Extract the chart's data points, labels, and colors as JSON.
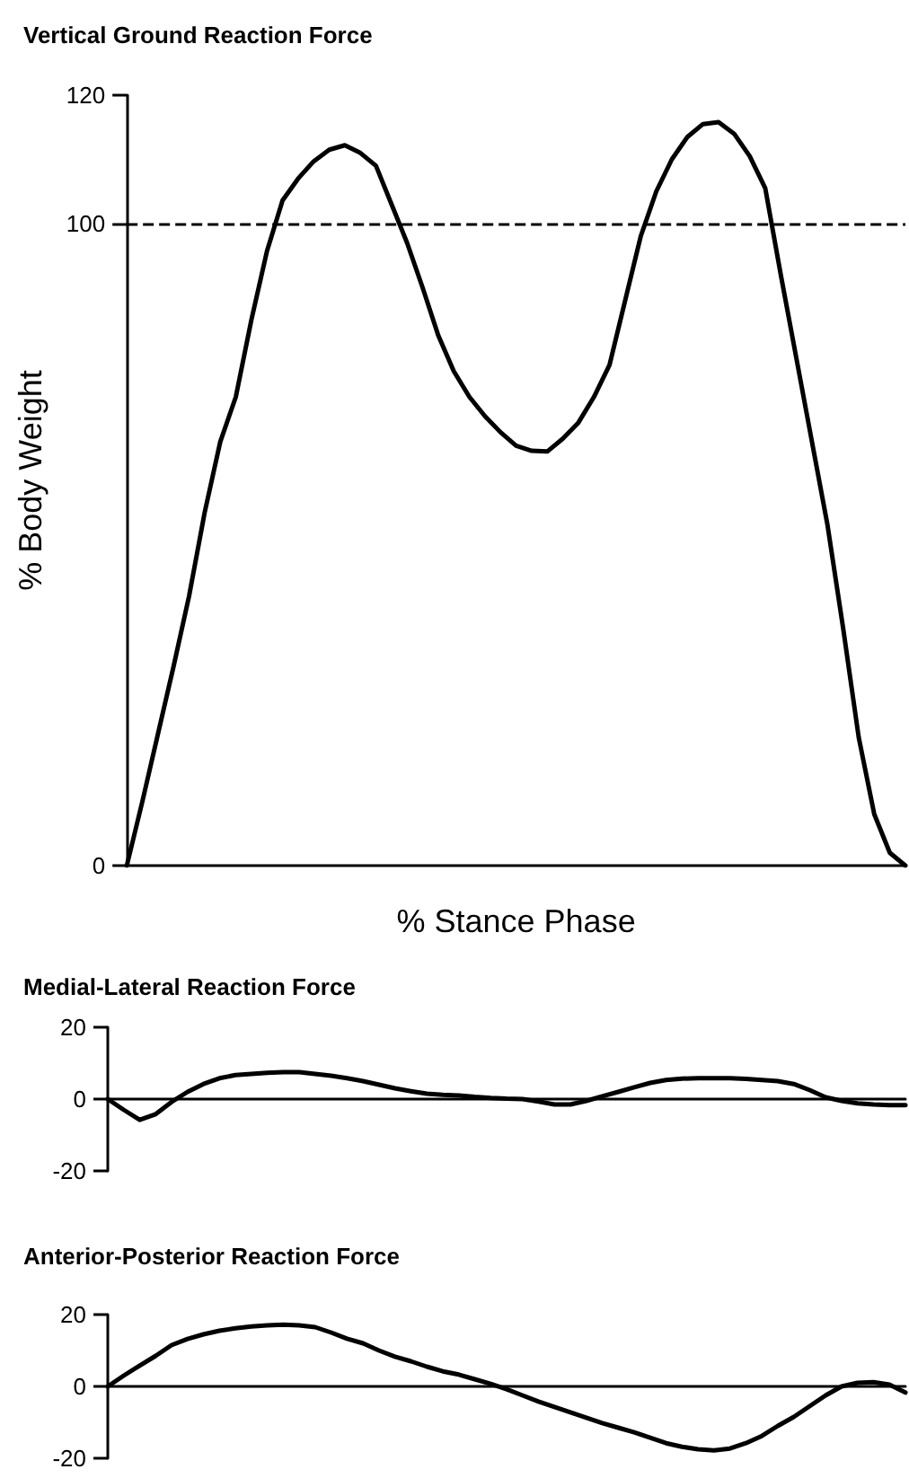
{
  "chart_data": [
    {
      "type": "line",
      "title": "Vertical Ground Reaction Force",
      "xlabel": "% Stance Phase",
      "ylabel": "% Body Weight",
      "categories": [
        null,
        null,
        null,
        null,
        null,
        null,
        null,
        null,
        null,
        null,
        null,
        null,
        null,
        null,
        null,
        null,
        null,
        null,
        null,
        null,
        null,
        null,
        null,
        null,
        null,
        null,
        null,
        null,
        null,
        null,
        null,
        null,
        null,
        null,
        null,
        null,
        null,
        null,
        null,
        null,
        null,
        null,
        null,
        null,
        null,
        null,
        null,
        null,
        null,
        null,
        null
      ],
      "series": [
        {
          "color": "#000000",
          "values": [
            0,
            10,
            20.5,
            31,
            42,
            55,
            66,
            73,
            85,
            95.7,
            103.6,
            107,
            109.7,
            111.5,
            112.2,
            111,
            109,
            103,
            97,
            90,
            82.6,
            77,
            73,
            70,
            67.5,
            65.4,
            64.6,
            64.5,
            66.5,
            69,
            73,
            78,
            88,
            98,
            105,
            110,
            113.5,
            115.5,
            115.8,
            114,
            110.5,
            105.5,
            92,
            79,
            66,
            53,
            37,
            20,
            8,
            2,
            0
          ]
        }
      ],
      "ylim": [
        0,
        120
      ],
      "yticks": [
        0,
        100,
        120
      ],
      "tick_labels": "y",
      "line_style": "solid",
      "ref_lines": [
        {
          "axis": "y",
          "value": 100,
          "color": "#000000",
          "line_style": "dashed"
        }
      ]
    },
    {
      "type": "line",
      "title": "Medial-Lateral Reaction Force",
      "categories": [
        null,
        null,
        null,
        null,
        null,
        null,
        null,
        null,
        null,
        null,
        null,
        null,
        null,
        null,
        null,
        null,
        null,
        null,
        null,
        null,
        null,
        null,
        null,
        null,
        null,
        null,
        null,
        null,
        null,
        null,
        null,
        null,
        null,
        null,
        null,
        null,
        null,
        null,
        null,
        null,
        null,
        null,
        null,
        null,
        null,
        null,
        null,
        null,
        null,
        null,
        null
      ],
      "series": [
        {
          "color": "#000000",
          "values": [
            0,
            -3,
            -5.8,
            -4.2,
            -0.8,
            2,
            4.2,
            5.8,
            6.7,
            7,
            7.3,
            7.5,
            7.5,
            7,
            6.5,
            5.8,
            5,
            4,
            3,
            2.2,
            1.5,
            1.2,
            1,
            0.6,
            0.3,
            0.1,
            0,
            -0.7,
            -1.5,
            -1.5,
            -0.5,
            0.8,
            2,
            3.3,
            4.5,
            5.3,
            5.7,
            5.8,
            5.8,
            5.8,
            5.6,
            5.3,
            5,
            4.2,
            2.5,
            0.5,
            -0.5,
            -1.2,
            -1.5,
            -1.7,
            -1.7
          ]
        }
      ],
      "ylim": [
        -20,
        20
      ],
      "yticks": [
        -20,
        0,
        20
      ],
      "tick_labels": "y",
      "line_style": "solid"
    },
    {
      "type": "line",
      "title": "Anterior-Posterior Reaction Force",
      "categories": [
        null,
        null,
        null,
        null,
        null,
        null,
        null,
        null,
        null,
        null,
        null,
        null,
        null,
        null,
        null,
        null,
        null,
        null,
        null,
        null,
        null,
        null,
        null,
        null,
        null,
        null,
        null,
        null,
        null,
        null,
        null,
        null,
        null,
        null,
        null,
        null,
        null,
        null,
        null,
        null,
        null,
        null,
        null,
        null,
        null,
        null,
        null,
        null,
        null,
        null,
        null
      ],
      "series": [
        {
          "color": "#000000",
          "values": [
            0,
            3,
            5.8,
            8.5,
            11.5,
            13.2,
            14.5,
            15.5,
            16.2,
            16.7,
            17,
            17.2,
            17,
            16.5,
            15,
            13.3,
            12,
            10,
            8.3,
            7,
            5.5,
            4.2,
            3.3,
            2,
            0.7,
            -0.8,
            -2.5,
            -4.2,
            -5.7,
            -7.2,
            -8.7,
            -10.2,
            -11.5,
            -12.8,
            -14.3,
            -15.8,
            -16.8,
            -17.5,
            -17.8,
            -17.3,
            -15.8,
            -13.8,
            -11,
            -8.5,
            -5.5,
            -2.5,
            0,
            1,
            1.2,
            0.5,
            -1.7
          ]
        }
      ],
      "ylim": [
        -20,
        20
      ],
      "yticks": [
        -20,
        0,
        20
      ],
      "tick_labels": "y",
      "line_style": "solid"
    }
  ]
}
